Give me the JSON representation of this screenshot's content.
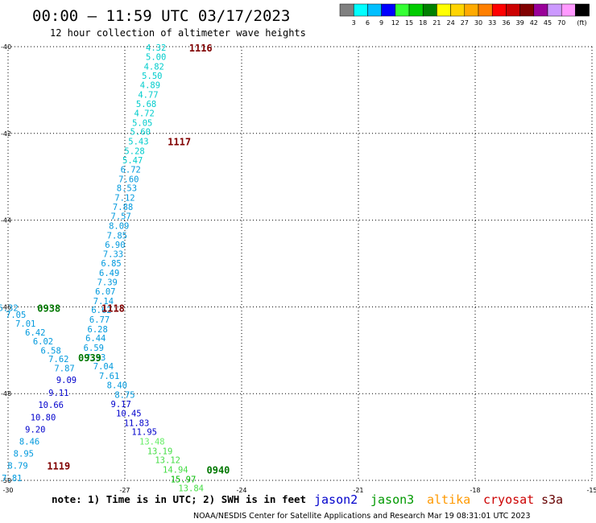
{
  "header": {
    "title": "00:00 – 11:59 UTC 03/17/2023",
    "subtitle": "12 hour collection of altimeter wave heights"
  },
  "colorbar": {
    "colors": [
      "#808080",
      "#00ffff",
      "#00bfff",
      "#0000ff",
      "#33ff33",
      "#00cc00",
      "#008000",
      "#ffff00",
      "#ffd400",
      "#ffaa00",
      "#ff7f00",
      "#ff0000",
      "#cc0000",
      "#800000",
      "#990099",
      "#cc99ff",
      "#ff99ff",
      "#000000"
    ],
    "labels": [
      "3",
      "6",
      "9",
      "12",
      "15",
      "18",
      "21",
      "24",
      "27",
      "30",
      "33",
      "36",
      "39",
      "42",
      "45",
      "70",
      "(ft)"
    ]
  },
  "chart_data": {
    "type": "scatter",
    "xlim": [
      -30,
      -15
    ],
    "ylim": [
      -50,
      -40
    ],
    "x_ticks": [
      -30,
      -27,
      -24,
      -21,
      -18,
      -15
    ],
    "y_ticks": [
      -40,
      -42,
      -44,
      -46,
      -48,
      -50
    ],
    "grid": true,
    "points": [
      {
        "x": -26.2,
        "y": -40.02,
        "v": "4.32",
        "c": "#00cccc"
      },
      {
        "x": -26.2,
        "y": -40.23,
        "v": "5.00",
        "c": "#00cccc"
      },
      {
        "x": -26.25,
        "y": -40.45,
        "v": "4.82",
        "c": "#00cccc"
      },
      {
        "x": -26.3,
        "y": -40.67,
        "v": "5.50",
        "c": "#00cccc"
      },
      {
        "x": -26.35,
        "y": -40.88,
        "v": "4.89",
        "c": "#00cccc"
      },
      {
        "x": -26.4,
        "y": -41.1,
        "v": "4.77",
        "c": "#00cccc"
      },
      {
        "x": -26.45,
        "y": -41.32,
        "v": "5.68",
        "c": "#00cccc"
      },
      {
        "x": -26.5,
        "y": -41.53,
        "v": "4.72",
        "c": "#00cccc"
      },
      {
        "x": -26.55,
        "y": -41.75,
        "v": "5.05",
        "c": "#00cccc"
      },
      {
        "x": -26.6,
        "y": -41.96,
        "v": "5.60",
        "c": "#00cccc"
      },
      {
        "x": -26.65,
        "y": -42.18,
        "v": "5.43",
        "c": "#00cccc"
      },
      {
        "x": -26.75,
        "y": -42.4,
        "v": "5.28",
        "c": "#00cccc"
      },
      {
        "x": -26.8,
        "y": -42.62,
        "v": "5.47",
        "c": "#00cccc"
      },
      {
        "x": -26.85,
        "y": -42.83,
        "v": "6.72",
        "c": "#0099dd"
      },
      {
        "x": -26.9,
        "y": -43.05,
        "v": "7.60",
        "c": "#0099dd"
      },
      {
        "x": -26.95,
        "y": -43.26,
        "v": "8.53",
        "c": "#0099dd"
      },
      {
        "x": -27.0,
        "y": -43.48,
        "v": "7.12",
        "c": "#0099dd"
      },
      {
        "x": -27.05,
        "y": -43.69,
        "v": "7.88",
        "c": "#0099dd"
      },
      {
        "x": -27.1,
        "y": -43.91,
        "v": "7.57",
        "c": "#0099dd"
      },
      {
        "x": -27.15,
        "y": -44.13,
        "v": "8.09",
        "c": "#0099dd"
      },
      {
        "x": -27.2,
        "y": -44.35,
        "v": "7.85",
        "c": "#0099dd"
      },
      {
        "x": -27.25,
        "y": -44.56,
        "v": "6.90",
        "c": "#0099dd"
      },
      {
        "x": -27.3,
        "y": -44.78,
        "v": "7.33",
        "c": "#0099dd"
      },
      {
        "x": -27.35,
        "y": -44.99,
        "v": "6.85",
        "c": "#0099dd"
      },
      {
        "x": -27.4,
        "y": -45.21,
        "v": "6.49",
        "c": "#0099dd"
      },
      {
        "x": -27.45,
        "y": -45.43,
        "v": "7.39",
        "c": "#0099dd"
      },
      {
        "x": -27.5,
        "y": -45.64,
        "v": "6.07",
        "c": "#0099dd"
      },
      {
        "x": -27.55,
        "y": -45.86,
        "v": "7.14",
        "c": "#0099dd"
      },
      {
        "x": -27.6,
        "y": -46.07,
        "v": "6.62",
        "c": "#0099dd"
      },
      {
        "x": -27.65,
        "y": -46.29,
        "v": "6.77",
        "c": "#0099dd"
      },
      {
        "x": -27.7,
        "y": -46.51,
        "v": "6.28",
        "c": "#0099dd"
      },
      {
        "x": -27.75,
        "y": -46.72,
        "v": "6.44",
        "c": "#0099dd"
      },
      {
        "x": -27.8,
        "y": -46.94,
        "v": "6.59",
        "c": "#0099dd"
      },
      {
        "x": -27.75,
        "y": -47.16,
        "v": "7.33",
        "c": "#0099dd"
      },
      {
        "x": -27.55,
        "y": -47.37,
        "v": "7.04",
        "c": "#0099dd"
      },
      {
        "x": -27.4,
        "y": -47.59,
        "v": "7.61",
        "c": "#0099dd"
      },
      {
        "x": -27.2,
        "y": -47.8,
        "v": "8.40",
        "c": "#0099dd"
      },
      {
        "x": -27.0,
        "y": -48.02,
        "v": "8.75",
        "c": "#0099dd"
      },
      {
        "x": -27.1,
        "y": -48.24,
        "v": "9.17",
        "c": "#0000cc"
      },
      {
        "x": -26.9,
        "y": -48.45,
        "v": "10.45",
        "c": "#0000cc"
      },
      {
        "x": -26.7,
        "y": -48.67,
        "v": "11.83",
        "c": "#0000cc"
      },
      {
        "x": -26.5,
        "y": -48.88,
        "v": "11.95",
        "c": "#0000cc"
      },
      {
        "x": -26.3,
        "y": -49.1,
        "v": "13.48",
        "c": "#66ee66"
      },
      {
        "x": -26.1,
        "y": -49.32,
        "v": "13.19",
        "c": "#44dd44"
      },
      {
        "x": -25.9,
        "y": -49.53,
        "v": "13.12",
        "c": "#44dd44"
      },
      {
        "x": -25.7,
        "y": -49.75,
        "v": "14.94",
        "c": "#44dd44"
      },
      {
        "x": -25.5,
        "y": -49.97,
        "v": "15.97",
        "c": "#00bb00"
      },
      {
        "x": -25.3,
        "y": -50.18,
        "v": "13.84",
        "c": "#44dd44"
      },
      {
        "x": -30.0,
        "y": -46.02,
        "v": "6.32",
        "c": "#0099dd"
      },
      {
        "x": -29.8,
        "y": -46.18,
        "v": "7.05",
        "c": "#0099dd"
      },
      {
        "x": -29.55,
        "y": -46.38,
        "v": "7.01",
        "c": "#0099dd"
      },
      {
        "x": -29.3,
        "y": -46.59,
        "v": "6.42",
        "c": "#0099dd"
      },
      {
        "x": -29.1,
        "y": -46.79,
        "v": "6.02",
        "c": "#0099dd"
      },
      {
        "x": -28.9,
        "y": -47.0,
        "v": "6.58",
        "c": "#0099dd"
      },
      {
        "x": -28.7,
        "y": -47.2,
        "v": "7.62",
        "c": "#0099dd"
      },
      {
        "x": -28.55,
        "y": -47.41,
        "v": "7.87",
        "c": "#0099dd"
      },
      {
        "x": -28.5,
        "y": -47.68,
        "v": "9.09",
        "c": "#0000cc"
      },
      {
        "x": -28.7,
        "y": -47.98,
        "v": "9.11",
        "c": "#0000cc"
      },
      {
        "x": -28.9,
        "y": -48.26,
        "v": "10.66",
        "c": "#0000cc"
      },
      {
        "x": -29.1,
        "y": -48.54,
        "v": "10.80",
        "c": "#0000cc"
      },
      {
        "x": -29.3,
        "y": -48.82,
        "v": "9.20",
        "c": "#0000cc"
      },
      {
        "x": -29.45,
        "y": -49.1,
        "v": "8.46",
        "c": "#0099dd"
      },
      {
        "x": -29.6,
        "y": -49.38,
        "v": "8.95",
        "c": "#0099dd"
      },
      {
        "x": -29.75,
        "y": -49.66,
        "v": "8.79",
        "c": "#0099dd"
      },
      {
        "x": -29.9,
        "y": -49.94,
        "v": "7.81",
        "c": "#0099dd"
      }
    ],
    "pass_labels": [
      {
        "x": -25.35,
        "y": -40.02,
        "text": "1116",
        "c": "#800000"
      },
      {
        "x": -25.9,
        "y": -42.18,
        "text": "1117",
        "c": "#800000"
      },
      {
        "x": -27.6,
        "y": -46.02,
        "text": "1118",
        "c": "#800000"
      },
      {
        "x": -29.25,
        "y": -46.02,
        "text": "0938",
        "c": "#007700"
      },
      {
        "x": -28.2,
        "y": -47.16,
        "text": "0939",
        "c": "#007700"
      },
      {
        "x": -29.0,
        "y": -49.66,
        "text": "1119",
        "c": "#800000"
      },
      {
        "x": -24.9,
        "y": -49.75,
        "text": "0940",
        "c": "#007700"
      }
    ]
  },
  "footer": {
    "note": "note: 1) Time is in UTC; 2) SWH is in feet",
    "satellites": [
      {
        "name": "jason2",
        "color": "#0000cc"
      },
      {
        "name": "jason3",
        "color": "#009900"
      },
      {
        "name": "altika",
        "color": "#ff9900"
      },
      {
        "name": "cryosat",
        "color": "#cc0000"
      },
      {
        "name": "s3a",
        "color": "#660000"
      }
    ],
    "credit": "NOAA/NESDIS Center for Satellite Applications and Research   Mar 19 08:31:01 UTC 2023"
  }
}
